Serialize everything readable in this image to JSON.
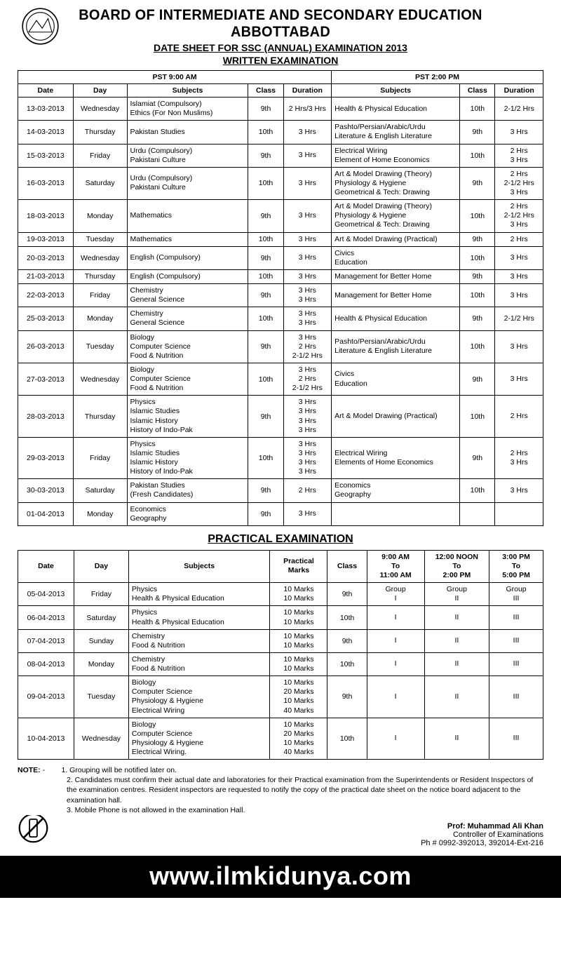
{
  "header": {
    "board": "BOARD OF INTERMEDIATE AND SECONDARY EDUCATION ABBOTTABAD",
    "line1": "DATE SHEET FOR SSC (ANNUAL) EXAMINATION 2013",
    "line2": "WRITTEN EXAMINATION"
  },
  "written": {
    "morning_label": "PST 9:00 AM",
    "afternoon_label": "PST 2:00 PM",
    "cols": {
      "date": "Date",
      "day": "Day",
      "subjects": "Subjects",
      "class": "Class",
      "duration": "Duration"
    },
    "rows": [
      {
        "date": "13-03-2013",
        "day": "Wednesday",
        "am_subj": "Islamiat (Compulsory)\nEthics (For Non Muslims)",
        "am_class": "9th",
        "am_dur": "2 Hrs/3 Hrs",
        "pm_subj": "Health & Physical Education",
        "pm_class": "10th",
        "pm_dur": "2-1/2 Hrs"
      },
      {
        "date": "14-03-2013",
        "day": "Thursday",
        "am_subj": "Pakistan Studies",
        "am_class": "10th",
        "am_dur": "3 Hrs",
        "pm_subj": "Pashto/Persian/Arabic/Urdu\nLiterature & English Literature",
        "pm_class": "9th",
        "pm_dur": "3 Hrs"
      },
      {
        "date": "15-03-2013",
        "day": "Friday",
        "am_subj": "Urdu (Compulsory)\nPakistani Culture",
        "am_class": "9th",
        "am_dur": "3 Hrs",
        "pm_subj": "Electrical Wiring\nElement of Home Economics",
        "pm_class": "10th",
        "pm_dur": "2 Hrs\n3 Hrs"
      },
      {
        "date": "16-03-2013",
        "day": "Saturday",
        "am_subj": "Urdu (Compulsory)\nPakistani Culture",
        "am_class": "10th",
        "am_dur": "3 Hrs",
        "pm_subj": "Art & Model Drawing (Theory)\nPhysiology & Hygiene\nGeometrical & Tech: Drawing",
        "pm_class": "9th",
        "pm_dur": "2 Hrs\n2-1/2 Hrs\n3 Hrs"
      },
      {
        "date": "18-03-2013",
        "day": "Monday",
        "am_subj": "Mathematics",
        "am_class": "9th",
        "am_dur": "3 Hrs",
        "pm_subj": "Art & Model Drawing (Theory)\nPhysiology & Hygiene\nGeometrical & Tech: Drawing",
        "pm_class": "10th",
        "pm_dur": "2 Hrs\n2-1/2 Hrs\n3 Hrs"
      },
      {
        "date": "19-03-2013",
        "day": "Tuesday",
        "am_subj": "Mathematics",
        "am_class": "10th",
        "am_dur": "3 Hrs",
        "pm_subj": "Art & Model Drawing (Practical)",
        "pm_class": "9th",
        "pm_dur": "2 Hrs"
      },
      {
        "date": "20-03-2013",
        "day": "Wednesday",
        "am_subj": "English (Compulsory)",
        "am_class": "9th",
        "am_dur": "3 Hrs",
        "pm_subj": "Civics\nEducation",
        "pm_class": "10th",
        "pm_dur": "3 Hrs"
      },
      {
        "date": "21-03-2013",
        "day": "Thursday",
        "am_subj": "English (Compulsory)",
        "am_class": "10th",
        "am_dur": "3 Hrs",
        "pm_subj": "Management for Better Home",
        "pm_class": "9th",
        "pm_dur": "3 Hrs"
      },
      {
        "date": "22-03-2013",
        "day": "Friday",
        "am_subj": "Chemistry\nGeneral Science",
        "am_class": "9th",
        "am_dur": "3 Hrs\n3 Hrs",
        "pm_subj": "Management for Better Home",
        "pm_class": "10th",
        "pm_dur": "3 Hrs"
      },
      {
        "date": "25-03-2013",
        "day": "Monday",
        "am_subj": "Chemistry\nGeneral Science",
        "am_class": "10th",
        "am_dur": "3 Hrs\n3 Hrs",
        "pm_subj": "Health & Physical Education",
        "pm_class": "9th",
        "pm_dur": "2-1/2 Hrs"
      },
      {
        "date": "26-03-2013",
        "day": "Tuesday",
        "am_subj": "Biology\nComputer Science\nFood & Nutrition",
        "am_class": "9th",
        "am_dur": "3 Hrs\n2 Hrs\n2-1/2 Hrs",
        "pm_subj": "Pashto/Persian/Arabic/Urdu\nLiterature & English Literature",
        "pm_class": "10th",
        "pm_dur": "3 Hrs"
      },
      {
        "date": "27-03-2013",
        "day": "Wednesday",
        "am_subj": "Biology\nComputer Science\nFood & Nutrition",
        "am_class": "10th",
        "am_dur": "3 Hrs\n2 Hrs\n2-1/2 Hrs",
        "pm_subj": "Civics\nEducation",
        "pm_class": "9th",
        "pm_dur": "3 Hrs"
      },
      {
        "date": "28-03-2013",
        "day": "Thursday",
        "am_subj": "Physics\nIslamic Studies\nIslamic History\nHistory of Indo-Pak",
        "am_class": "9th",
        "am_dur": "3 Hrs\n3 Hrs\n3 Hrs\n3 Hrs",
        "pm_subj": "Art & Model Drawing (Practical)",
        "pm_class": "10th",
        "pm_dur": "2 Hrs"
      },
      {
        "date": "29-03-2013",
        "day": "Friday",
        "am_subj": "Physics\nIslamic Studies\nIslamic History\nHistory of Indo-Pak",
        "am_class": "10th",
        "am_dur": "3 Hrs\n3 Hrs\n3 Hrs\n3 Hrs",
        "pm_subj": "Electrical Wiring\nElements of Home Economics",
        "pm_class": "9th",
        "pm_dur": "2 Hrs\n3 Hrs"
      },
      {
        "date": "30-03-2013",
        "day": "Saturday",
        "am_subj": "Pakistan Studies\n(Fresh Candidates)",
        "am_class": "9th",
        "am_dur": "2 Hrs",
        "pm_subj": "Economics\nGeography",
        "pm_class": "10th",
        "pm_dur": "3 Hrs"
      },
      {
        "date": "01-04-2013",
        "day": "Monday",
        "am_subj": "Economics\nGeography",
        "am_class": "9th",
        "am_dur": "3 Hrs",
        "pm_subj": "",
        "pm_class": "",
        "pm_dur": ""
      }
    ]
  },
  "practical": {
    "title": "PRACTICAL EXAMINATION",
    "cols": {
      "date": "Date",
      "day": "Day",
      "subjects": "Subjects",
      "marks": "Practical\nMarks",
      "class": "Class",
      "slot1": "9:00 AM\nTo\n11:00 AM",
      "slot2": "12:00 NOON\nTo\n2:00 PM",
      "slot3": "3:00 PM\nTo\n5:00 PM"
    },
    "rows": [
      {
        "date": "05-04-2013",
        "day": "Friday",
        "subj": "Physics\nHealth & Physical Education",
        "marks": "10 Marks\n10 Marks",
        "class": "9th",
        "g1": "Group\nI",
        "g2": "Group\nII",
        "g3": "Group\nIII"
      },
      {
        "date": "06-04-2013",
        "day": "Saturday",
        "subj": "Physics\nHealth & Physical Education",
        "marks": "10 Marks\n10 Marks",
        "class": "10th",
        "g1": "I",
        "g2": "II",
        "g3": "III"
      },
      {
        "date": "07-04-2013",
        "day": "Sunday",
        "subj": "Chemistry\nFood & Nutrition",
        "marks": "10 Marks\n10 Marks",
        "class": "9th",
        "g1": "I",
        "g2": "II",
        "g3": "III"
      },
      {
        "date": "08-04-2013",
        "day": "Monday",
        "subj": "Chemistry\nFood & Nutrition",
        "marks": "10 Marks\n10 Marks",
        "class": "10th",
        "g1": "I",
        "g2": "II",
        "g3": "III"
      },
      {
        "date": "09-04-2013",
        "day": "Tuesday",
        "subj": "Biology\nComputer Science\nPhysiology & Hygiene\nElectrical Wiring",
        "marks": "10 Marks\n20 Marks\n10 Marks\n40 Marks",
        "class": "9th",
        "g1": "I",
        "g2": "II",
        "g3": "III"
      },
      {
        "date": "10-04-2013",
        "day": "Wednesday",
        "subj": "Biology\nComputer Science\nPhysiology & Hygiene\nElectrical Wiring.",
        "marks": "10 Marks\n20 Marks\n10 Marks\n40 Marks",
        "class": "10th",
        "g1": "I",
        "g2": "II",
        "g3": "III"
      }
    ]
  },
  "notes": {
    "label": "NOTE",
    "n1": "1. Grouping will be notified later on.",
    "n2": "2. Candidates must confirm their actual date and laboratories for their Practical examination from the Superintendents or Resident Inspectors of the examination centres. Resident inspectors are requested to notify the copy of the practical date sheet on the notice board adjacent to the examination hall.",
    "n3": "3. Mobile Phone is not allowed in the examination Hall."
  },
  "signature": {
    "name": "Prof: Muhammad Ali Khan",
    "title": "Controller of Examinations",
    "phone": "Ph # 0992-392013, 392014-Ext-216"
  },
  "footer": {
    "url": "www.ilmkidunya.com"
  }
}
